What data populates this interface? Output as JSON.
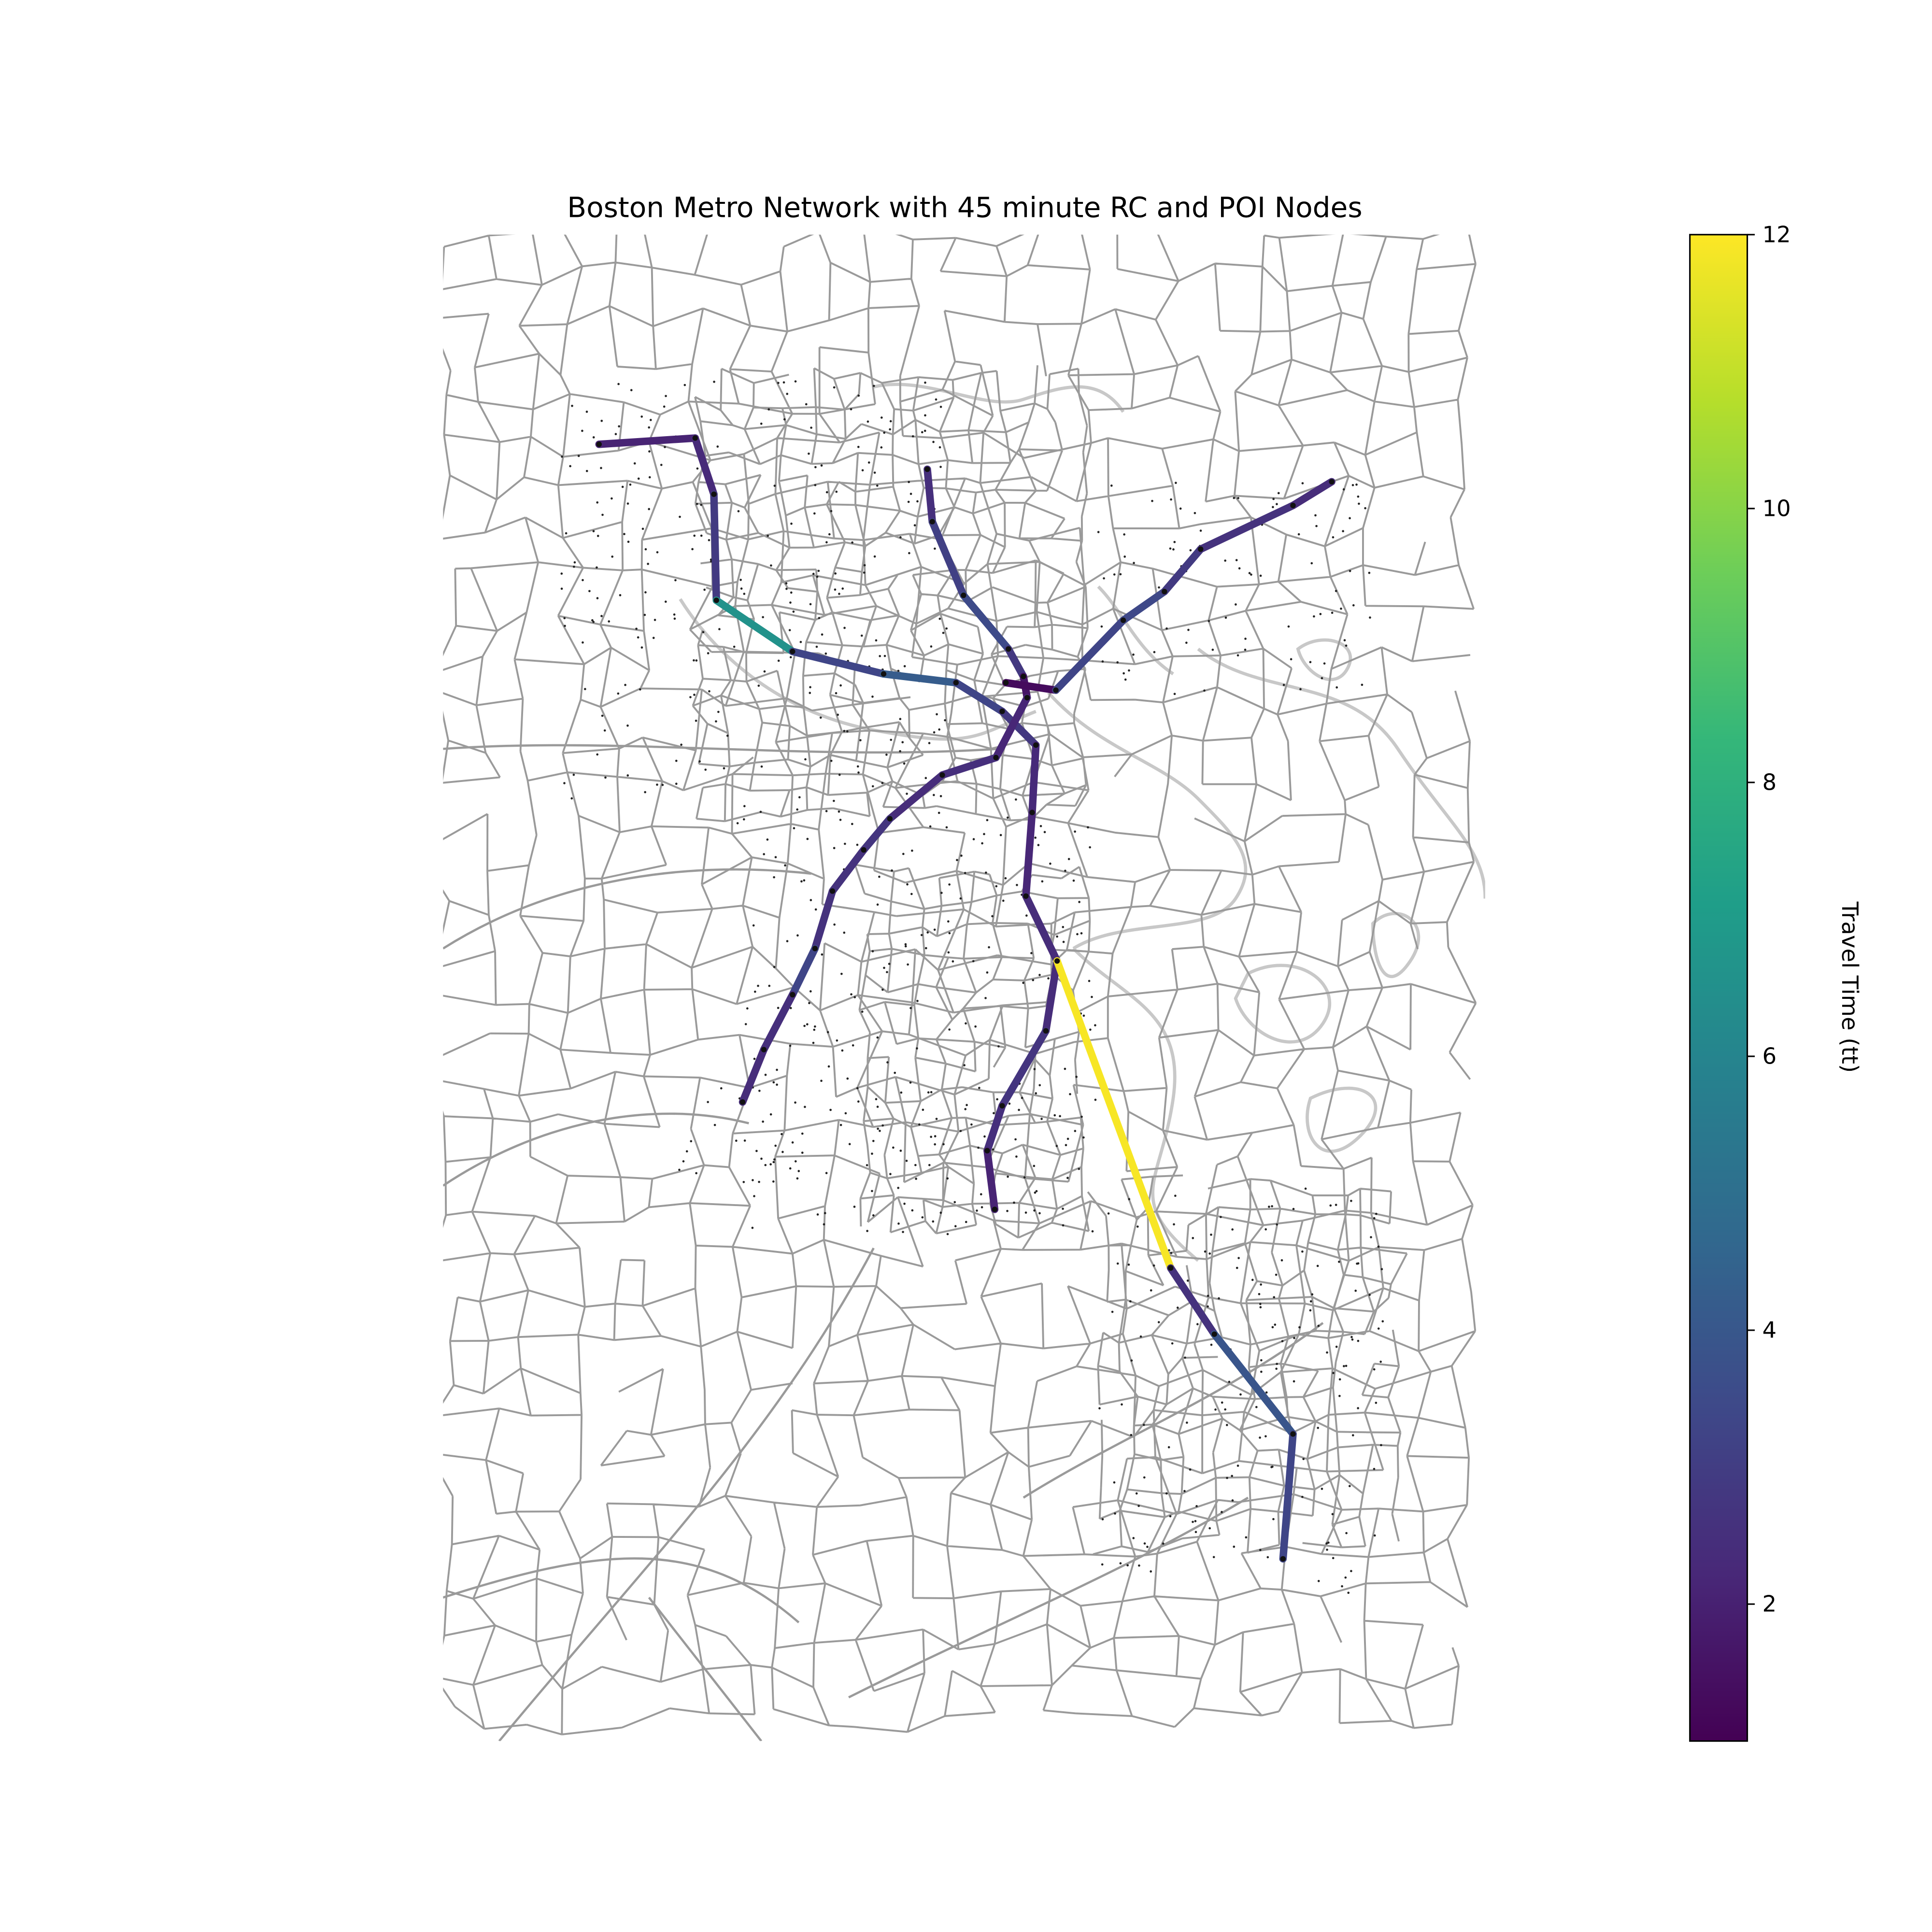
{
  "chart_data": {
    "type": "map",
    "title": "Boston Metro Network with 45 minute RC and POI Nodes",
    "colorbar": {
      "label": "Travel Time (tt)",
      "min": 1,
      "max": 12,
      "ticks": [
        2,
        4,
        6,
        8,
        10,
        12
      ],
      "colormap": "viridis",
      "stops": [
        "#440154",
        "#482878",
        "#3e4989",
        "#31688e",
        "#26828e",
        "#1f9e89",
        "#35b779",
        "#6ece58",
        "#b5de2b",
        "#fde725"
      ]
    },
    "colors": {
      "road": "#9a9a9a",
      "coast": "#c8c8c8",
      "poi": "#222222"
    },
    "segments": [
      {
        "path": [
          [
            480,
            356
          ],
          [
            557,
            351
          ]
        ],
        "tt": 2.1
      },
      {
        "path": [
          [
            557,
            351
          ],
          [
            572,
            396
          ]
        ],
        "tt": 2.3
      },
      {
        "path": [
          [
            572,
            396
          ],
          [
            574,
            481
          ]
        ],
        "tt": 2.9
      },
      {
        "path": [
          [
            574,
            481
          ],
          [
            635,
            522
          ]
        ],
        "tt": 6.6
      },
      {
        "path": [
          [
            635,
            522
          ],
          [
            708,
            540
          ]
        ],
        "tt": 3.3
      },
      {
        "path": [
          [
            708,
            540
          ],
          [
            766,
            547
          ]
        ],
        "tt": 4.2
      },
      {
        "path": [
          [
            766,
            547
          ],
          [
            803,
            570
          ]
        ],
        "tt": 3.3
      },
      {
        "path": [
          [
            803,
            570
          ],
          [
            830,
            597
          ]
        ],
        "tt": 2.8
      },
      {
        "path": [
          [
            743,
            376
          ],
          [
            747,
            418
          ]
        ],
        "tt": 2.5
      },
      {
        "path": [
          [
            747,
            418
          ],
          [
            772,
            477
          ]
        ],
        "tt": 3.1
      },
      {
        "path": [
          [
            772,
            477
          ],
          [
            808,
            520
          ]
        ],
        "tt": 3.5
      },
      {
        "path": [
          [
            808,
            520
          ],
          [
            820,
            542
          ]
        ],
        "tt": 2.8
      },
      {
        "path": [
          [
            820,
            542
          ],
          [
            823,
            559
          ]
        ],
        "tt": 1.6
      },
      {
        "path": [
          [
            806,
            547
          ],
          [
            846,
            553
          ]
        ],
        "tt": 1.3
      },
      {
        "path": [
          [
            823,
            559
          ],
          [
            798,
            607
          ]
        ],
        "tt": 2.2
      },
      {
        "path": [
          [
            798,
            607
          ],
          [
            755,
            621
          ]
        ],
        "tt": 2.5
      },
      {
        "path": [
          [
            755,
            621
          ],
          [
            713,
            656
          ]
        ],
        "tt": 2.4
      },
      {
        "path": [
          [
            713,
            656
          ],
          [
            692,
            681
          ]
        ],
        "tt": 2.7
      },
      {
        "path": [
          [
            692,
            681
          ],
          [
            667,
            714
          ]
        ],
        "tt": 2.6
      },
      {
        "path": [
          [
            667,
            714
          ],
          [
            653,
            760
          ]
        ],
        "tt": 2.6
      },
      {
        "path": [
          [
            653,
            760
          ],
          [
            635,
            797
          ]
        ],
        "tt": 3.3
      },
      {
        "path": [
          [
            635,
            797
          ],
          [
            612,
            841
          ]
        ],
        "tt": 2.5
      },
      {
        "path": [
          [
            612,
            841
          ],
          [
            595,
            883
          ]
        ],
        "tt": 2.4
      },
      {
        "path": [
          [
            846,
            553
          ],
          [
            900,
            497
          ]
        ],
        "tt": 3.3
      },
      {
        "path": [
          [
            900,
            497
          ],
          [
            933,
            474
          ]
        ],
        "tt": 3.4
      },
      {
        "path": [
          [
            933,
            474
          ],
          [
            962,
            440
          ]
        ],
        "tt": 2.9
      },
      {
        "path": [
          [
            962,
            440
          ],
          [
            1036,
            405
          ]
        ],
        "tt": 2.6
      },
      {
        "path": [
          [
            1036,
            405
          ],
          [
            1067,
            386
          ]
        ],
        "tt": 2.4
      },
      {
        "path": [
          [
            830,
            597
          ],
          [
            827,
            651
          ]
        ],
        "tt": 2.3
      },
      {
        "path": [
          [
            827,
            651
          ],
          [
            822,
            718
          ]
        ],
        "tt": 2.2
      },
      {
        "path": [
          [
            822,
            718
          ],
          [
            847,
            770
          ]
        ],
        "tt": 2.4
      },
      {
        "path": [
          [
            847,
            770
          ],
          [
            838,
            826
          ]
        ],
        "tt": 2.4
      },
      {
        "path": [
          [
            838,
            826
          ],
          [
            803,
            886
          ]
        ],
        "tt": 2.7
      },
      {
        "path": [
          [
            803,
            886
          ],
          [
            791,
            922
          ]
        ],
        "tt": 2.5
      },
      {
        "path": [
          [
            791,
            922
          ],
          [
            797,
            969
          ]
        ],
        "tt": 2.1
      },
      {
        "path": [
          [
            847,
            770
          ],
          [
            938,
            1016
          ]
        ],
        "tt": 11.9
      },
      {
        "path": [
          [
            938,
            1016
          ],
          [
            973,
            1069
          ]
        ],
        "tt": 2.6
      },
      {
        "path": [
          [
            973,
            1069
          ],
          [
            1036,
            1149
          ]
        ],
        "tt": 3.9
      },
      {
        "path": [
          [
            1036,
            1149
          ],
          [
            1028,
            1249
          ]
        ],
        "tt": 3.3
      }
    ]
  }
}
